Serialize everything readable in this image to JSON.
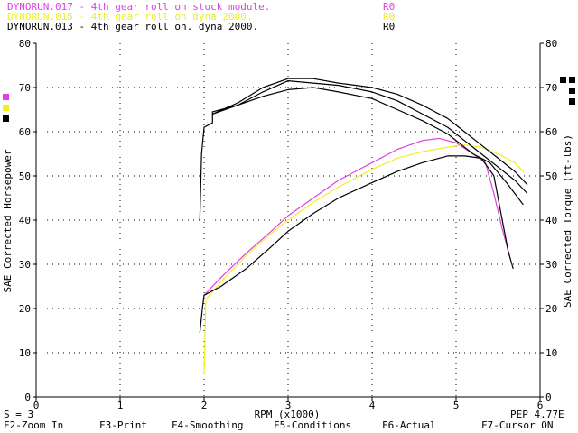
{
  "legend": [
    {
      "text": "DYNORUN.017 - 4th gear roll on stock module.",
      "tag": "R0",
      "color": "#e040e0"
    },
    {
      "text": "DYNORUN.015 - 4th gear roll on dyna 2000.",
      "tag": "R0",
      "color": "#f0f020"
    },
    {
      "text": "DYNORUN.013 - 4th gear roll on. dyna 2000.",
      "tag": "R0",
      "color": "#000000"
    }
  ],
  "status": {
    "smoothing": "S = 3",
    "pep": "PEP 4.77E"
  },
  "function_keys": [
    {
      "label": "F2-Zoom In"
    },
    {
      "label": "F3-Print"
    },
    {
      "label": "F4-Smoothing"
    },
    {
      "label": "F5-Conditions"
    },
    {
      "label": "F6-Actual"
    },
    {
      "label": "F7-Cursor ON"
    }
  ],
  "colors": {
    "magenta": "#e040e0",
    "yellow": "#f0f020",
    "black": "#000000",
    "grid": "#000000"
  },
  "chart_data": {
    "type": "line",
    "xlabel": "RPM (x1000)",
    "ylabel_left": "SAE Corrected Horsepower",
    "ylabel_right": "SAE Corrected Torque (ft-lbs)",
    "xlim": [
      0,
      6
    ],
    "ylim": [
      0,
      80
    ],
    "x_ticks": [
      "0",
      "1",
      "2",
      "3",
      "4",
      "5",
      "6"
    ],
    "y_ticks": [
      "0",
      "10",
      "20",
      "30",
      "40",
      "50",
      "60",
      "70",
      "80"
    ],
    "grid": "dotted",
    "series": [
      {
        "name": "DYNORUN.017 - 4th gear roll on stock module.",
        "kind": "horsepower",
        "color": "#e040e0",
        "points": [
          [
            2.0,
            23
          ],
          [
            2.2,
            27
          ],
          [
            2.5,
            32.5
          ],
          [
            2.8,
            37.5
          ],
          [
            3.0,
            41
          ],
          [
            3.3,
            45
          ],
          [
            3.6,
            49
          ],
          [
            4.0,
            53
          ],
          [
            4.3,
            56
          ],
          [
            4.6,
            58
          ],
          [
            4.8,
            58.5
          ],
          [
            5.0,
            57.5
          ],
          [
            5.2,
            55
          ],
          [
            5.35,
            53
          ],
          [
            5.45,
            46
          ],
          [
            5.55,
            38
          ],
          [
            5.65,
            31
          ]
        ]
      },
      {
        "name": "DYNORUN.015 - 4th gear roll on dyna 2000.",
        "kind": "horsepower",
        "color": "#f0f020",
        "points": [
          [
            2.0,
            5
          ],
          [
            2.02,
            22
          ],
          [
            2.2,
            26
          ],
          [
            2.5,
            32
          ],
          [
            2.8,
            37
          ],
          [
            3.0,
            40
          ],
          [
            3.3,
            44
          ],
          [
            3.6,
            47.5
          ],
          [
            4.0,
            51.5
          ],
          [
            4.3,
            54
          ],
          [
            4.6,
            55.5
          ],
          [
            4.9,
            56.5
          ],
          [
            5.1,
            57
          ],
          [
            5.3,
            56.5
          ],
          [
            5.5,
            55
          ],
          [
            5.7,
            53
          ],
          [
            5.8,
            51
          ]
        ]
      },
      {
        "name": "DYNORUN.013 - 4th gear roll on. dyna 2000.",
        "kind": "horsepower",
        "color": "#000000",
        "points": [
          [
            1.95,
            14.5
          ],
          [
            1.98,
            20
          ],
          [
            2.0,
            23
          ],
          [
            2.2,
            25
          ],
          [
            2.5,
            29
          ],
          [
            2.8,
            34
          ],
          [
            3.0,
            37.5
          ],
          [
            3.3,
            41.5
          ],
          [
            3.6,
            45
          ],
          [
            4.0,
            48.5
          ],
          [
            4.3,
            51
          ],
          [
            4.6,
            53
          ],
          [
            4.9,
            54.5
          ],
          [
            5.1,
            54.5
          ],
          [
            5.3,
            54
          ],
          [
            5.45,
            50
          ],
          [
            5.55,
            40
          ],
          [
            5.62,
            33
          ],
          [
            5.68,
            29
          ]
        ]
      },
      {
        "name": "DYNORUN.017 - 4th gear roll on stock module.",
        "kind": "torque",
        "color": "#000000",
        "points": [
          [
            1.95,
            40
          ],
          [
            1.97,
            55
          ],
          [
            2.0,
            61
          ],
          [
            2.1,
            62
          ],
          [
            2.1,
            64.5
          ],
          [
            2.4,
            66
          ],
          [
            2.7,
            68
          ],
          [
            3.0,
            69.5
          ],
          [
            3.3,
            70
          ],
          [
            3.6,
            69
          ],
          [
            4.0,
            67.5
          ],
          [
            4.3,
            65
          ],
          [
            4.6,
            62.5
          ],
          [
            4.9,
            59.5
          ],
          [
            5.2,
            55
          ],
          [
            5.4,
            53
          ],
          [
            5.6,
            48.5
          ],
          [
            5.8,
            43.5
          ]
        ]
      },
      {
        "name": "DYNORUN.015 - 4th gear roll on dyna 2000.",
        "kind": "torque",
        "color": "#000000",
        "points": [
          [
            2.1,
            64
          ],
          [
            2.4,
            66
          ],
          [
            2.7,
            69
          ],
          [
            3.0,
            71.5
          ],
          [
            3.3,
            71
          ],
          [
            3.6,
            70.5
          ],
          [
            4.0,
            69
          ],
          [
            4.3,
            67
          ],
          [
            4.6,
            64
          ],
          [
            4.9,
            61
          ],
          [
            5.1,
            58
          ],
          [
            5.3,
            55
          ],
          [
            5.5,
            52
          ],
          [
            5.7,
            49
          ],
          [
            5.85,
            46
          ]
        ]
      },
      {
        "name": "DYNORUN.013 - 4th gear roll on. dyna 2000.",
        "kind": "torque",
        "color": "#000000",
        "points": [
          [
            2.1,
            64
          ],
          [
            2.4,
            66.5
          ],
          [
            2.7,
            70
          ],
          [
            3.0,
            72
          ],
          [
            3.3,
            72
          ],
          [
            3.6,
            71
          ],
          [
            4.0,
            70
          ],
          [
            4.3,
            68.5
          ],
          [
            4.6,
            66
          ],
          [
            4.9,
            63
          ],
          [
            5.1,
            60
          ],
          [
            5.3,
            57
          ],
          [
            5.5,
            54
          ],
          [
            5.7,
            51
          ],
          [
            5.85,
            48
          ]
        ]
      }
    ]
  }
}
